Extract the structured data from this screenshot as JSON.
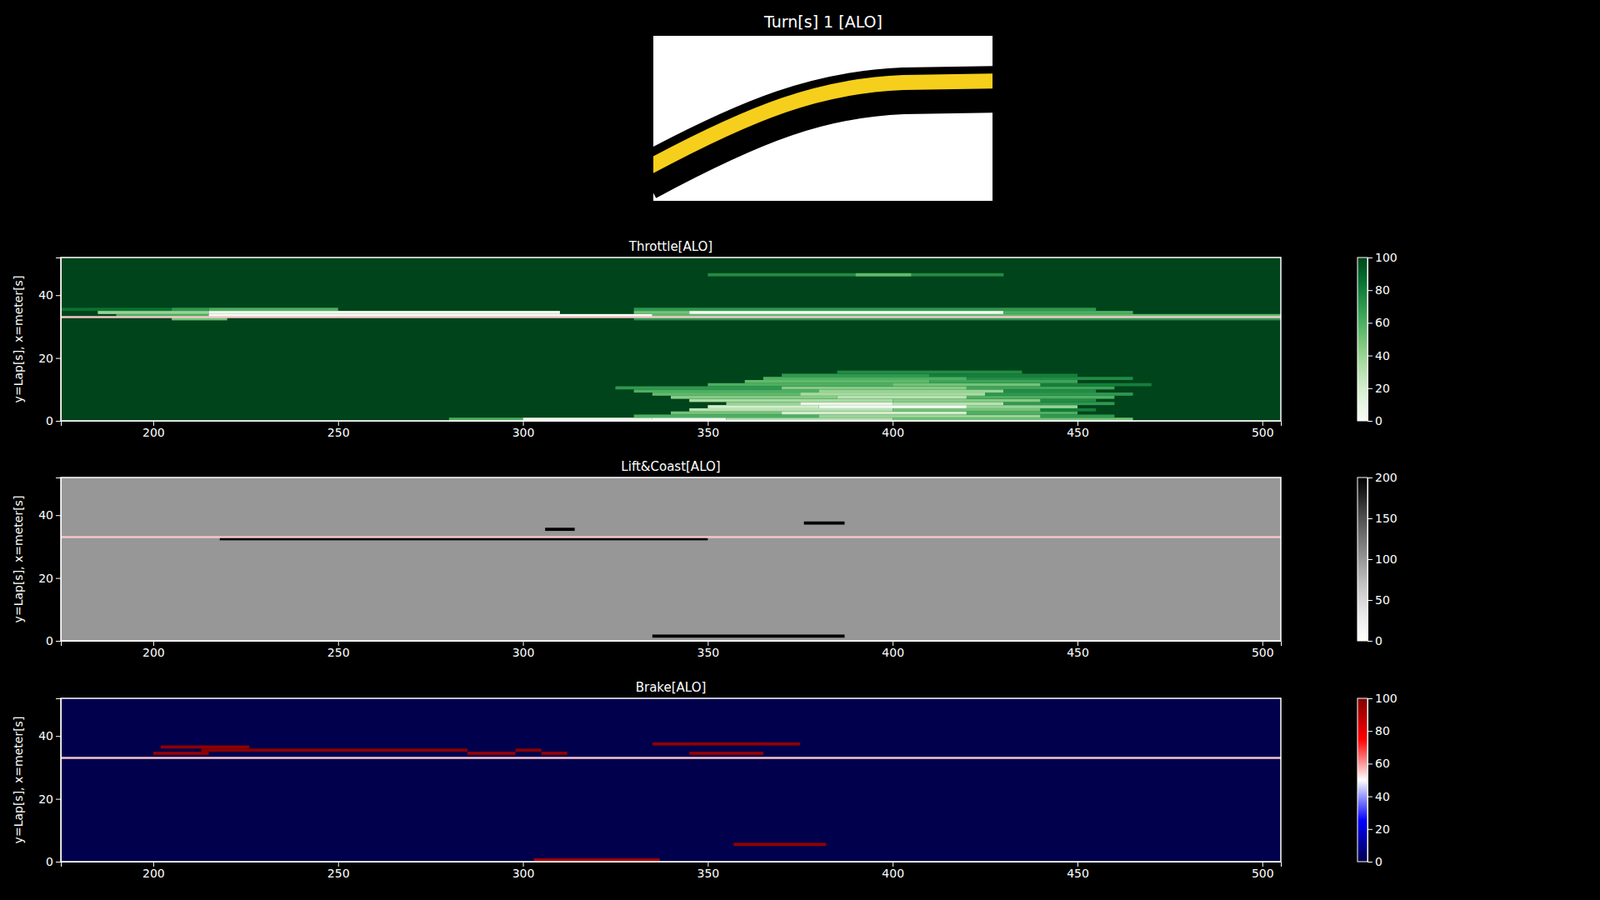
{
  "title": "Turn[s] 1 [ALO]",
  "chart_data": [
    {
      "type": "heatmap",
      "title": "Throttle[ALO]",
      "ylabel": "y=Lap[s], x=meter[s]",
      "color": "Greens",
      "xlim": [
        175,
        505
      ],
      "xticks": [
        200,
        250,
        300,
        350,
        400,
        450,
        500
      ],
      "ylim": [
        0,
        52
      ],
      "yticks": [
        0,
        20,
        40
      ],
      "colorbar": {
        "range": [
          0,
          100
        ],
        "ticks": [
          0,
          20,
          40,
          60,
          80,
          100
        ]
      },
      "base_value": 100,
      "reference_line": 33,
      "cells": [
        {
          "lap": 0,
          "x0": 280,
          "x1": 300,
          "value": 60
        },
        {
          "lap": 0,
          "x0": 300,
          "x1": 335,
          "value": 5
        },
        {
          "lap": 0,
          "x0": 335,
          "x1": 355,
          "value": 0
        },
        {
          "lap": 0,
          "x0": 355,
          "x1": 400,
          "value": 30
        },
        {
          "lap": 0,
          "x0": 400,
          "x1": 465,
          "value": 50
        },
        {
          "lap": 1,
          "x0": 330,
          "x1": 380,
          "value": 60
        },
        {
          "lap": 1,
          "x0": 380,
          "x1": 440,
          "value": 40
        },
        {
          "lap": 1,
          "x0": 440,
          "x1": 460,
          "value": 70
        },
        {
          "lap": 2,
          "x0": 340,
          "x1": 370,
          "value": 50
        },
        {
          "lap": 2,
          "x0": 370,
          "x1": 420,
          "value": 20
        },
        {
          "lap": 2,
          "x0": 420,
          "x1": 450,
          "value": 60
        },
        {
          "lap": 3,
          "x0": 345,
          "x1": 400,
          "value": 30
        },
        {
          "lap": 3,
          "x0": 400,
          "x1": 440,
          "value": 50
        },
        {
          "lap": 3,
          "x0": 440,
          "x1": 455,
          "value": 80
        },
        {
          "lap": 4,
          "x0": 350,
          "x1": 380,
          "value": 20
        },
        {
          "lap": 4,
          "x0": 380,
          "x1": 420,
          "value": 2
        },
        {
          "lap": 4,
          "x0": 420,
          "x1": 450,
          "value": 40
        },
        {
          "lap": 5,
          "x0": 355,
          "x1": 375,
          "value": 40
        },
        {
          "lap": 5,
          "x0": 375,
          "x1": 400,
          "value": 10
        },
        {
          "lap": 5,
          "x0": 400,
          "x1": 430,
          "value": 30
        },
        {
          "lap": 5,
          "x0": 430,
          "x1": 460,
          "value": 70
        },
        {
          "lap": 6,
          "x0": 345,
          "x1": 400,
          "value": 35
        },
        {
          "lap": 6,
          "x0": 400,
          "x1": 440,
          "value": 45
        },
        {
          "lap": 6,
          "x0": 440,
          "x1": 455,
          "value": 75
        },
        {
          "lap": 7,
          "x0": 340,
          "x1": 385,
          "value": 45
        },
        {
          "lap": 7,
          "x0": 385,
          "x1": 420,
          "value": 30
        },
        {
          "lap": 7,
          "x0": 420,
          "x1": 460,
          "value": 60
        },
        {
          "lap": 8,
          "x0": 335,
          "x1": 375,
          "value": 55
        },
        {
          "lap": 8,
          "x0": 375,
          "x1": 425,
          "value": 35
        },
        {
          "lap": 8,
          "x0": 425,
          "x1": 465,
          "value": 70
        },
        {
          "lap": 9,
          "x0": 330,
          "x1": 380,
          "value": 60
        },
        {
          "lap": 9,
          "x0": 380,
          "x1": 430,
          "value": 40
        },
        {
          "lap": 9,
          "x0": 430,
          "x1": 455,
          "value": 75
        },
        {
          "lap": 10,
          "x0": 325,
          "x1": 370,
          "value": 70
        },
        {
          "lap": 10,
          "x0": 370,
          "x1": 420,
          "value": 45
        },
        {
          "lap": 10,
          "x0": 420,
          "x1": 460,
          "value": 65
        },
        {
          "lap": 11,
          "x0": 350,
          "x1": 400,
          "value": 60
        },
        {
          "lap": 11,
          "x0": 400,
          "x1": 440,
          "value": 50
        },
        {
          "lap": 11,
          "x0": 440,
          "x1": 470,
          "value": 80
        },
        {
          "lap": 12,
          "x0": 360,
          "x1": 410,
          "value": 55
        },
        {
          "lap": 12,
          "x0": 410,
          "x1": 450,
          "value": 65
        },
        {
          "lap": 13,
          "x0": 365,
          "x1": 420,
          "value": 60
        },
        {
          "lap": 13,
          "x0": 420,
          "x1": 465,
          "value": 75
        },
        {
          "lap": 14,
          "x0": 370,
          "x1": 410,
          "value": 70
        },
        {
          "lap": 14,
          "x0": 410,
          "x1": 450,
          "value": 80
        },
        {
          "lap": 15,
          "x0": 385,
          "x1": 435,
          "value": 75
        },
        {
          "lap": 32,
          "x0": 205,
          "x1": 220,
          "value": 50
        },
        {
          "lap": 32,
          "x0": 330,
          "x1": 505,
          "value": 70
        },
        {
          "lap": 33,
          "x0": 190,
          "x1": 215,
          "value": 60
        },
        {
          "lap": 33,
          "x0": 215,
          "x1": 335,
          "value": 0
        },
        {
          "lap": 33,
          "x0": 335,
          "x1": 505,
          "value": 55
        },
        {
          "lap": 34,
          "x0": 185,
          "x1": 215,
          "value": 40
        },
        {
          "lap": 34,
          "x0": 215,
          "x1": 310,
          "value": 5
        },
        {
          "lap": 34,
          "x0": 330,
          "x1": 345,
          "value": 50
        },
        {
          "lap": 34,
          "x0": 345,
          "x1": 430,
          "value": 2
        },
        {
          "lap": 34,
          "x0": 430,
          "x1": 465,
          "value": 60
        },
        {
          "lap": 35,
          "x0": 175,
          "x1": 205,
          "value": 85
        },
        {
          "lap": 35,
          "x0": 205,
          "x1": 215,
          "value": 70
        },
        {
          "lap": 35,
          "x0": 215,
          "x1": 250,
          "value": 60
        },
        {
          "lap": 35,
          "x0": 330,
          "x1": 455,
          "value": 70
        },
        {
          "lap": 46,
          "x0": 350,
          "x1": 430,
          "value": 75
        },
        {
          "lap": 46,
          "x0": 390,
          "x1": 405,
          "value": 55
        }
      ]
    },
    {
      "type": "heatmap",
      "title": "Lift&Coast[ALO]",
      "ylabel": "y=Lap[s], x=meter[s]",
      "color": "Greys",
      "xlim": [
        175,
        505
      ],
      "xticks": [
        200,
        250,
        300,
        350,
        400,
        450,
        500
      ],
      "ylim": [
        0,
        52
      ],
      "yticks": [
        0,
        20,
        40
      ],
      "colorbar": {
        "range": [
          0,
          200
        ],
        "ticks": [
          0,
          50,
          100,
          150,
          200
        ]
      },
      "base_value": 100,
      "reference_line": 33,
      "cells": [
        {
          "lap": 1,
          "x0": 335,
          "x1": 387,
          "value": 200
        },
        {
          "lap": 32,
          "x0": 218,
          "x1": 350,
          "value": 200
        },
        {
          "lap": 35,
          "x0": 306,
          "x1": 314,
          "value": 200
        },
        {
          "lap": 37,
          "x0": 376,
          "x1": 387,
          "value": 200
        }
      ]
    },
    {
      "type": "heatmap",
      "title": "Brake[ALO]",
      "ylabel": "y=Lap[s], x=meter[s]",
      "color": "seismic",
      "xlim": [
        175,
        505
      ],
      "xticks": [
        200,
        250,
        300,
        350,
        400,
        450,
        500
      ],
      "ylim": [
        0,
        52
      ],
      "yticks": [
        0,
        20,
        40
      ],
      "colorbar": {
        "range": [
          0,
          100
        ],
        "ticks": [
          0,
          20,
          40,
          60,
          80,
          100
        ]
      },
      "base_value": 0,
      "reference_line": 33,
      "cells": [
        {
          "lap": 0,
          "x0": 303,
          "x1": 337,
          "value": 90
        },
        {
          "lap": 5,
          "x0": 357,
          "x1": 382,
          "value": 96
        },
        {
          "lap": 34,
          "x0": 200,
          "x1": 215,
          "value": 96
        },
        {
          "lap": 34,
          "x0": 285,
          "x1": 298,
          "value": 96
        },
        {
          "lap": 34,
          "x0": 305,
          "x1": 312,
          "value": 96
        },
        {
          "lap": 34,
          "x0": 345,
          "x1": 365,
          "value": 96
        },
        {
          "lap": 35,
          "x0": 213,
          "x1": 285,
          "value": 98
        },
        {
          "lap": 35,
          "x0": 298,
          "x1": 305,
          "value": 98
        },
        {
          "lap": 36,
          "x0": 202,
          "x1": 226,
          "value": 97
        },
        {
          "lap": 37,
          "x0": 335,
          "x1": 375,
          "value": 97
        }
      ]
    }
  ]
}
